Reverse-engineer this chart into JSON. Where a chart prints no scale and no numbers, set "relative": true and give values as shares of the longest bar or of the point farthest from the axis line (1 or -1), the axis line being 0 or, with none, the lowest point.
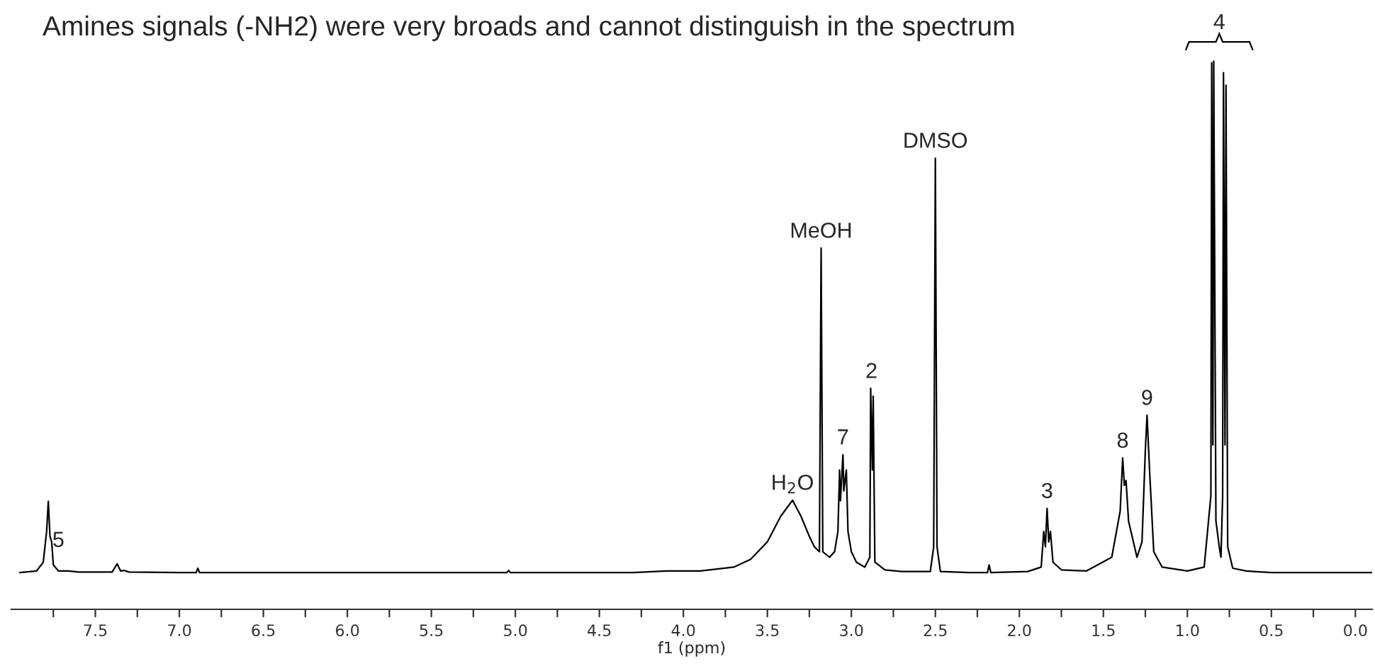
{
  "chart_data": {
    "type": "line",
    "title": "Amines signals (-NH2) were very broads and cannot distinguish in the spectrum",
    "xlabel": "f1 (ppm)",
    "relative": true,
    "color": "#000000",
    "x": [
      7.95,
      7.85,
      7.81,
      7.79,
      7.78,
      7.77,
      7.76,
      7.75,
      7.72,
      7.66,
      7.6,
      7.4,
      7.37,
      7.35,
      7.33,
      7.3,
      7.0,
      6.9,
      6.89,
      6.88,
      6.0,
      5.05,
      5.04,
      5.03,
      4.3,
      4.1,
      3.9,
      3.7,
      3.6,
      3.5,
      3.42,
      3.35,
      3.3,
      3.25,
      3.22,
      3.19,
      3.18,
      3.17,
      3.13,
      3.1,
      3.08,
      3.07,
      3.065,
      3.05,
      3.045,
      3.03,
      3.02,
      3.0,
      2.97,
      2.92,
      2.89,
      2.885,
      2.875,
      2.87,
      2.86,
      2.8,
      2.7,
      2.53,
      2.51,
      2.5,
      2.49,
      2.47,
      2.3,
      2.19,
      2.18,
      2.17,
      1.95,
      1.87,
      1.855,
      1.845,
      1.835,
      1.825,
      1.815,
      1.8,
      1.75,
      1.6,
      1.45,
      1.4,
      1.385,
      1.375,
      1.365,
      1.35,
      1.3,
      1.27,
      1.25,
      1.24,
      1.225,
      1.2,
      1.15,
      1.0,
      0.9,
      0.86,
      0.855,
      0.848,
      0.843,
      0.83,
      0.81,
      0.8,
      0.79,
      0.785,
      0.776,
      0.77,
      0.76,
      0.73,
      0.65,
      0.5,
      0.0,
      -0.1
    ],
    "values": [
      0.067,
      0.07,
      0.086,
      0.142,
      0.197,
      0.133,
      0.123,
      0.081,
      0.07,
      0.07,
      0.068,
      0.068,
      0.083,
      0.07,
      0.071,
      0.068,
      0.067,
      0.067,
      0.075,
      0.067,
      0.067,
      0.067,
      0.071,
      0.067,
      0.067,
      0.07,
      0.07,
      0.077,
      0.091,
      0.123,
      0.17,
      0.199,
      0.17,
      0.133,
      0.114,
      0.105,
      0.659,
      0.105,
      0.095,
      0.105,
      0.142,
      0.254,
      0.198,
      0.282,
      0.216,
      0.254,
      0.142,
      0.105,
      0.086,
      0.077,
      0.095,
      0.403,
      0.254,
      0.389,
      0.086,
      0.072,
      0.069,
      0.069,
      0.114,
      0.823,
      0.114,
      0.069,
      0.067,
      0.067,
      0.081,
      0.067,
      0.069,
      0.077,
      0.142,
      0.114,
      0.184,
      0.123,
      0.142,
      0.086,
      0.072,
      0.07,
      0.095,
      0.179,
      0.276,
      0.226,
      0.235,
      0.161,
      0.095,
      0.123,
      0.291,
      0.354,
      0.254,
      0.105,
      0.077,
      0.07,
      0.077,
      0.207,
      0.997,
      0.3,
      1.0,
      0.161,
      0.114,
      0.095,
      0.207,
      0.979,
      0.3,
      0.956,
      0.114,
      0.075,
      0.07,
      0.067,
      0.067,
      0.067
    ],
    "xlim": [
      8.0,
      -0.1
    ],
    "xticks": [
      {
        "value": 7.75,
        "label": null
      },
      7.5,
      {
        "value": 7.25,
        "label": null
      },
      {
        "value": 7,
        "label": "7.0"
      },
      {
        "value": 6.75,
        "label": null
      },
      6.5,
      {
        "value": 6.25,
        "label": null
      },
      {
        "value": 6,
        "label": "6.0"
      },
      {
        "value": 5.75,
        "label": null
      },
      5.5,
      {
        "value": 5.25,
        "label": null
      },
      {
        "value": 5,
        "label": "5.0"
      },
      {
        "value": 4.75,
        "label": null
      },
      4.5,
      {
        "value": 4.25,
        "label": null
      },
      {
        "value": 4,
        "label": "4.0"
      },
      {
        "value": 3.75,
        "label": null
      },
      3.5,
      {
        "value": 3.25,
        "label": null
      },
      {
        "value": 3,
        "label": "3.0"
      },
      {
        "value": 2.75,
        "label": null
      },
      2.5,
      {
        "value": 2.25,
        "label": null
      },
      {
        "value": 2,
        "label": "2.0"
      },
      {
        "value": 1.75,
        "label": null
      },
      1.5,
      {
        "value": 1.25,
        "label": null
      },
      {
        "value": 1,
        "label": "1.0"
      },
      {
        "value": 0.75,
        "label": null
      },
      0.5,
      {
        "value": 0.25,
        "label": null
      },
      {
        "value": 0,
        "label": "0.0"
      }
    ],
    "annotations": [
      {
        "text": "5",
        "x": 7.72,
        "y": 0.095
      },
      {
        "text": "H$_{2}$O",
        "x": 3.35,
        "y": 0.199
      },
      {
        "text": "MeOH",
        "x": 3.18,
        "y": 0.659
      },
      {
        "text": "7",
        "x": 3.05,
        "y": 0.282
      },
      {
        "text": "2",
        "x": 2.88,
        "y": 0.403
      },
      {
        "text": "DMSO",
        "x": 2.5,
        "y": 0.823
      },
      {
        "text": "3",
        "x": 1.835,
        "y": 0.184
      },
      {
        "text": "8",
        "x": 1.385,
        "y": 0.276
      },
      {
        "text": "9",
        "x": 1.24,
        "y": 0.354
      },
      {
        "text": "4",
        "x": 0.81,
        "y": 1.0
      }
    ]
  }
}
